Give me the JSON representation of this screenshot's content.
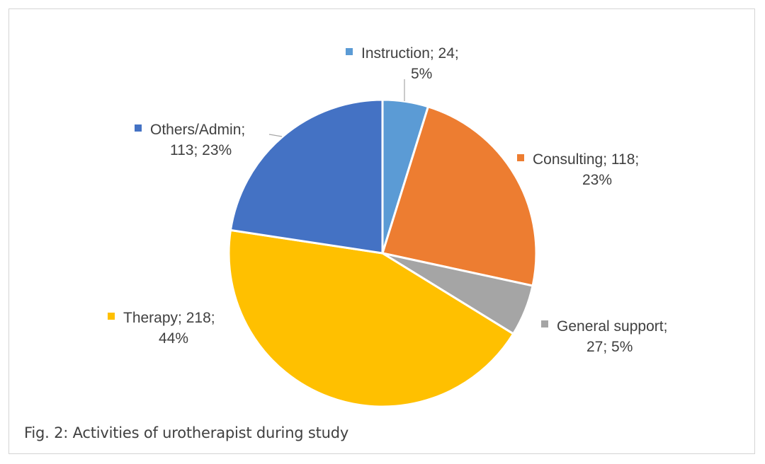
{
  "caption": "Fig. 2: Activities of urotherapist during study",
  "chart_data": {
    "type": "pie",
    "title": "",
    "slices": [
      {
        "name": "Instruction",
        "value": 24,
        "percent": "5%",
        "color": "#5b9bd5",
        "label_lines": [
          "Instruction; 24;",
          "5%"
        ]
      },
      {
        "name": "Consulting",
        "value": 118,
        "percent": "23%",
        "color": "#ed7d31",
        "label_lines": [
          "Consulting; 118;",
          "23%"
        ]
      },
      {
        "name": "General support",
        "value": 27,
        "percent": "5%",
        "color": "#a5a5a5",
        "label_lines": [
          "General support;",
          "27; 5%"
        ]
      },
      {
        "name": "Therapy",
        "value": 218,
        "percent": "44%",
        "color": "#ffc000",
        "label_lines": [
          "Therapy; 218;",
          "44%"
        ]
      },
      {
        "name": "Others/Admin",
        "value": 113,
        "percent": "23%",
        "color": "#4472c4",
        "label_lines": [
          "Others/Admin;",
          "113; 23%"
        ]
      }
    ],
    "start_angle": "12 o'clock",
    "direction": "clockwise",
    "data_labels": "category; value; percent",
    "legend": "none"
  }
}
